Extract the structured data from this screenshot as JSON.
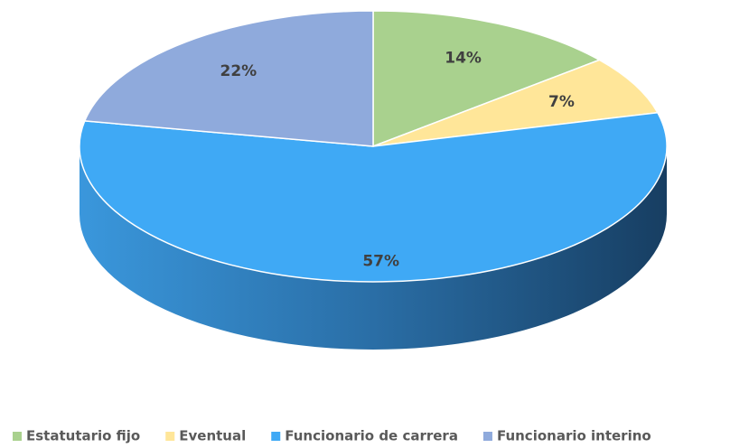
{
  "chart_data": {
    "type": "pie3d",
    "categories": [
      "Estatutario fijo",
      "Eventual",
      "Funcionario de carrera",
      "Funcionario interino"
    ],
    "values": [
      14,
      7,
      57,
      22
    ],
    "value_labels": [
      "14%",
      "7%",
      "57%",
      "22%"
    ],
    "colors": [
      "#a9d18e",
      "#ffe699",
      "#3fa9f5",
      "#8faadc"
    ],
    "legend": "bottom"
  }
}
